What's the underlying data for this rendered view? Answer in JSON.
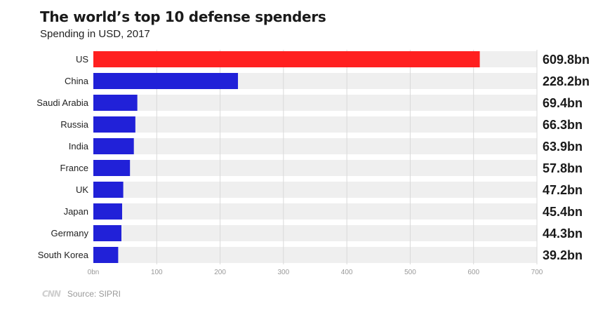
{
  "title": "The world’s top 10 defense spenders",
  "subtitle": "Spending in USD, 2017",
  "footer": {
    "logo": "CNN",
    "source": "Source: SIPRI"
  },
  "colors": {
    "highlight": "#ff2020",
    "bar": "#2121d8",
    "track": "#efefef",
    "grid": "#d9d9d9",
    "label": "#222222",
    "axis": "#999999"
  },
  "chart_data": {
    "type": "bar",
    "orientation": "horizontal",
    "title": "The world’s top 10 defense spenders",
    "subtitle": "Spending in USD, 2017",
    "categories": [
      "US",
      "China",
      "Saudi Arabia",
      "Russia",
      "India",
      "France",
      "UK",
      "Japan",
      "Germany",
      "South Korea"
    ],
    "values": [
      609.8,
      228.2,
      69.4,
      66.3,
      63.9,
      57.8,
      47.2,
      45.4,
      44.3,
      39.2
    ],
    "value_labels": [
      "609.8bn",
      "228.2bn",
      "69.4bn",
      "66.3bn",
      "63.9bn",
      "57.8bn",
      "47.2bn",
      "45.4bn",
      "44.3bn",
      "39.2bn"
    ],
    "xlim": [
      0,
      700
    ],
    "xticks": [
      0,
      100,
      200,
      300,
      400,
      500,
      600,
      700
    ],
    "xtick_labels": [
      "0bn",
      "100",
      "200",
      "300",
      "400",
      "500",
      "600",
      "700"
    ],
    "xlabel": "",
    "ylabel": "",
    "highlight_index": 0,
    "grid": true
  }
}
